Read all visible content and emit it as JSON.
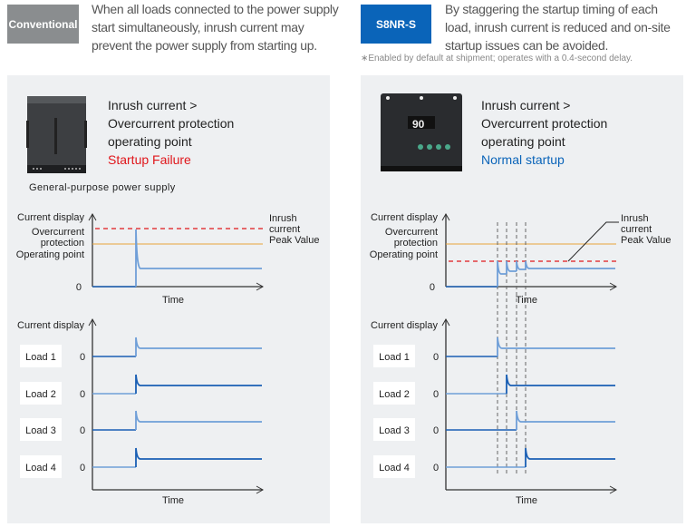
{
  "conventional": {
    "tag": "Conventional",
    "tag_color": "#8a8d8f",
    "description": [
      "When all loads connected to the power supply",
      "start simultaneously, inrush current may",
      "prevent the power supply from starting up."
    ],
    "heading": [
      "Inrush current >",
      "Overcurrent protection",
      "operating point"
    ],
    "result": "Startup Failure",
    "result_color": "#e0161b",
    "device_caption": "General-purpose power supply"
  },
  "s8nr": {
    "tag": "S8NR-S",
    "tag_color": "#0a64b9",
    "description": [
      "By staggering the startup timing of each",
      "load, inrush current is reduced and on-site",
      "startup issues can be avoided."
    ],
    "note": "∗Enabled by default at shipment; operates with a 0.4-second delay.",
    "heading": [
      "Inrush current >",
      "Overcurrent protection",
      "operating point"
    ],
    "result": "Normal startup",
    "result_color": "#0a64b9",
    "device_display": "90"
  },
  "chart_labels": {
    "y_axis": "Current display",
    "ocp": [
      "Overcurrent",
      "protection",
      "Operating point"
    ],
    "inrush": [
      "Inrush",
      "current",
      "Peak Value"
    ],
    "zero": "0",
    "x_axis": "Time",
    "loads": [
      "Load 1",
      "Load 2",
      "Load 3",
      "Load 4"
    ]
  },
  "colors": {
    "ocp_line": "#e8a33a",
    "inrush_line": "#e0161b",
    "trace_dark": "#1a5fb4",
    "trace_light": "#6f9fd8"
  }
}
